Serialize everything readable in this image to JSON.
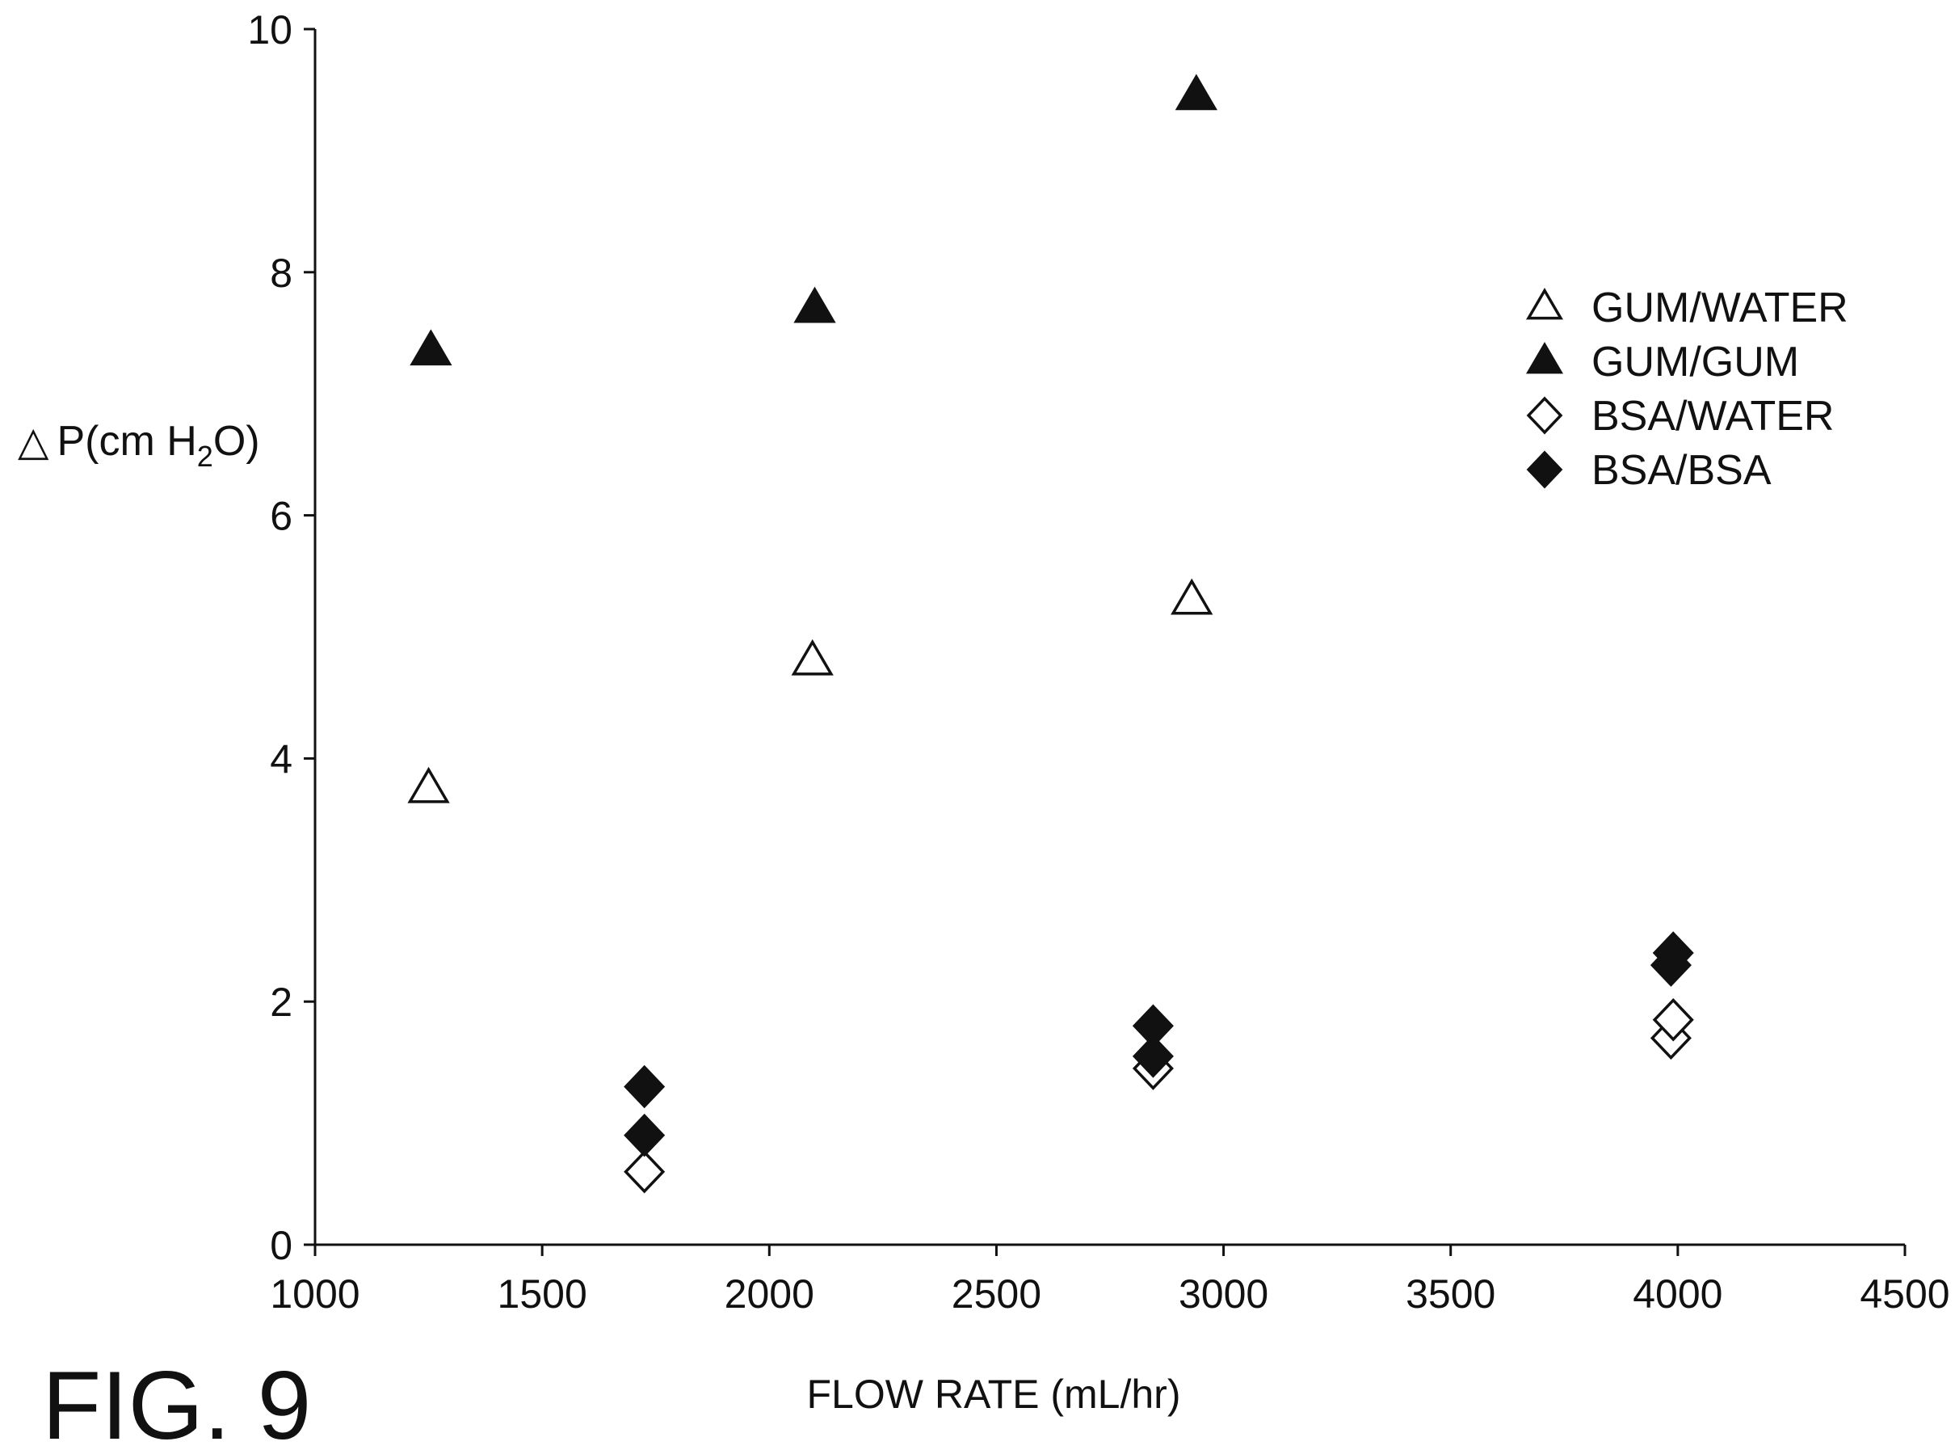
{
  "figure_label": "FIG. 9",
  "chart_data": {
    "type": "scatter",
    "xlabel": "FLOW RATE (mL/hr)",
    "ylabel": {
      "delta": "△",
      "prefix": "P(cm H",
      "sub": "2",
      "suffix": "O)"
    },
    "xlim": [
      1000,
      4500
    ],
    "ylim": [
      0,
      10
    ],
    "xticks": [
      1000,
      1500,
      2000,
      2500,
      3000,
      3500,
      4000,
      4500
    ],
    "yticks": [
      0,
      2,
      4,
      6,
      8,
      10
    ],
    "grid": false,
    "legend_position": "top-right",
    "series": [
      {
        "name": "GUM/WATER",
        "marker": "triangle-open",
        "color": "#111111",
        "points": [
          {
            "x": 1250,
            "y": 3.75
          },
          {
            "x": 2095,
            "y": 4.8
          },
          {
            "x": 2930,
            "y": 5.3
          }
        ]
      },
      {
        "name": "GUM/GUM",
        "marker": "triangle-filled",
        "color": "#111111",
        "points": [
          {
            "x": 1255,
            "y": 7.35
          },
          {
            "x": 2100,
            "y": 7.7
          },
          {
            "x": 2940,
            "y": 9.45
          }
        ]
      },
      {
        "name": "BSA/WATER",
        "marker": "diamond-open",
        "color": "#111111",
        "points": [
          {
            "x": 1725,
            "y": 0.6
          },
          {
            "x": 2845,
            "y": 1.45
          },
          {
            "x": 3985,
            "y": 1.7
          },
          {
            "x": 3990,
            "y": 1.85
          }
        ]
      },
      {
        "name": "BSA/BSA",
        "marker": "diamond-filled",
        "color": "#111111",
        "points": [
          {
            "x": 1725,
            "y": 0.9
          },
          {
            "x": 1725,
            "y": 1.3
          },
          {
            "x": 2845,
            "y": 1.55
          },
          {
            "x": 2845,
            "y": 1.8
          },
          {
            "x": 3985,
            "y": 2.3
          },
          {
            "x": 3990,
            "y": 2.4
          }
        ]
      }
    ]
  }
}
